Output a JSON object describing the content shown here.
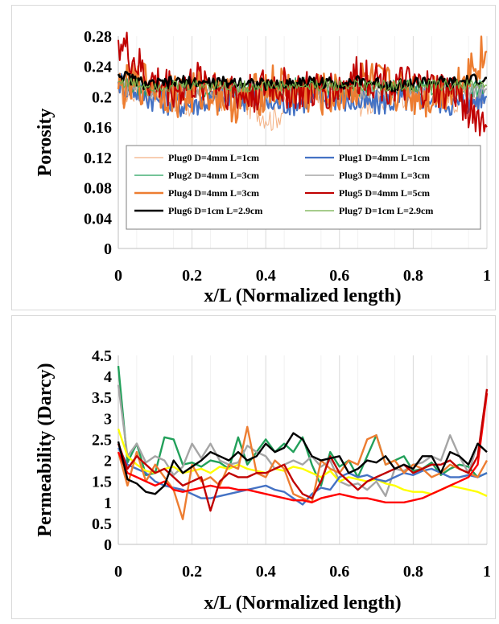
{
  "chart_data": [
    {
      "type": "line",
      "title": "",
      "xlabel": "x/L (Normalized length)",
      "ylabel": "Porosity",
      "xlim": [
        0,
        1
      ],
      "ylim": [
        0,
        0.28
      ],
      "xticks": [
        "0",
        "0.2",
        "0.4",
        "0.6",
        "0.8",
        "1"
      ],
      "yticks": [
        "0",
        "0.04",
        "0.08",
        "0.12",
        "0.16",
        "0.2",
        "0.24",
        "0.28"
      ],
      "grid": "vertical",
      "legend_position": "center-bottom",
      "series": [
        {
          "name": "Plug0 D=4mm L=1cm",
          "color": "#f4b183",
          "width": 1,
          "base": 0.205,
          "amp": 0.018,
          "y": [
            0.205,
            0.21,
            0.185,
            0.2,
            0.195,
            0.17,
            0.205,
            0.21,
            0.19,
            0.2,
            0.208,
            0.195,
            0.2
          ]
        },
        {
          "name": "Plug1 D=4mm  L=1cm",
          "color": "#4472c4",
          "width": 2.2,
          "base": 0.197,
          "amp": 0.018,
          "y": [
            0.22,
            0.2,
            0.19,
            0.195,
            0.2,
            0.19,
            0.195,
            0.2,
            0.19,
            0.195,
            0.2,
            0.19,
            0.2
          ]
        },
        {
          "name": "Plug2 D=4mm  L=3cm",
          "color": "#22a05a",
          "width": 1.2,
          "base": 0.212,
          "amp": 0.012,
          "y": [
            0.22,
            0.21,
            0.215,
            0.21,
            0.212,
            0.21,
            0.215,
            0.21,
            0.212,
            0.21,
            0.215,
            0.21,
            0.21
          ]
        },
        {
          "name": "Plug3 D=4mm  L=3cm",
          "color": "#a5a5a5",
          "width": 1.6,
          "base": 0.21,
          "amp": 0.012,
          "y": [
            0.215,
            0.21,
            0.208,
            0.212,
            0.21,
            0.208,
            0.212,
            0.21,
            0.208,
            0.212,
            0.21,
            0.208,
            0.21
          ]
        },
        {
          "name": "Plug4 D=4mm  L=3cm",
          "color": "#ed7d31",
          "width": 2.4,
          "base": 0.207,
          "amp": 0.03,
          "y": [
            0.21,
            0.22,
            0.2,
            0.21,
            0.19,
            0.215,
            0.205,
            0.2,
            0.22,
            0.21,
            0.2,
            0.215,
            0.26
          ]
        },
        {
          "name": "Plug5 D=4mm  L=5cm",
          "color": "#c00000",
          "width": 2,
          "base": 0.213,
          "amp": 0.028,
          "y": [
            0.275,
            0.22,
            0.21,
            0.225,
            0.2,
            0.215,
            0.205,
            0.21,
            0.23,
            0.215,
            0.21,
            0.205,
            0.16
          ]
        },
        {
          "name": "Plug6 D=1cm L=2.9cm",
          "color": "#000000",
          "width": 2.6,
          "base": 0.218,
          "amp": 0.008,
          "y": [
            0.23,
            0.215,
            0.22,
            0.218,
            0.22,
            0.215,
            0.22,
            0.218,
            0.22,
            0.215,
            0.22,
            0.218,
            0.225
          ]
        },
        {
          "name": "Plug7 D=1cm L=2.9cm",
          "color": "#70ad47",
          "width": 1.2,
          "base": 0.214,
          "amp": 0.008,
          "y": [
            0.22,
            0.215,
            0.214,
            0.216,
            0.213,
            0.215,
            0.214,
            0.216,
            0.214,
            0.215,
            0.214,
            0.216,
            0.215
          ]
        }
      ]
    },
    {
      "type": "line",
      "title": "",
      "xlabel": "x/L (Normalized length)",
      "ylabel": "Permeability  (Darcy)",
      "xlim": [
        0,
        1
      ],
      "ylim": [
        0,
        4.5
      ],
      "xticks": [
        "0",
        "0.2",
        "0.4",
        "0.6",
        "0.8",
        "1"
      ],
      "yticks": [
        "0",
        "0.5",
        "1",
        "1.5",
        "2",
        "2.5",
        "3",
        "3.5",
        "4",
        "4.5"
      ],
      "grid": "vertical",
      "x": [
        0,
        0.025,
        0.05,
        0.075,
        0.1,
        0.125,
        0.15,
        0.175,
        0.2,
        0.225,
        0.25,
        0.275,
        0.3,
        0.325,
        0.35,
        0.375,
        0.4,
        0.425,
        0.45,
        0.475,
        0.5,
        0.525,
        0.55,
        0.575,
        0.6,
        0.625,
        0.65,
        0.675,
        0.7,
        0.725,
        0.75,
        0.775,
        0.8,
        0.825,
        0.85,
        0.875,
        0.9,
        0.925,
        0.95,
        0.975,
        1
      ],
      "series": [
        {
          "color": "#22a05a",
          "y": [
            4.25,
            1.95,
            2.4,
            1.65,
            1.7,
            2.55,
            2.5,
            1.9,
            1.95,
            1.85,
            2.0,
            1.95,
            1.8,
            2.55,
            1.9,
            2.2,
            2.5,
            2.2,
            2.4,
            2.2,
            2.55,
            1.9,
            1.4,
            2.2,
            1.85,
            2.0,
            1.6,
            2.1,
            2.6,
            1.9,
            2.0,
            2.1,
            1.75,
            1.8,
            1.95,
            1.65,
            1.8,
            1.9,
            1.85,
            1.6,
            1.7
          ]
        },
        {
          "color": "#a5a5a5",
          "y": [
            3.8,
            2.1,
            2.4,
            1.95,
            2.1,
            2.0,
            1.65,
            1.85,
            2.4,
            2.05,
            2.4,
            2.0,
            1.9,
            1.95,
            2.35,
            2.2,
            2.1,
            1.8,
            1.9,
            2.0,
            1.9,
            2.1,
            1.85,
            2.0,
            1.5,
            1.4,
            1.45,
            1.3,
            1.5,
            1.15,
            1.8,
            1.75,
            1.9,
            1.95,
            2.1,
            2.0,
            2.6,
            2.1,
            1.7,
            2.4,
            2.2
          ]
        },
        {
          "color": "#ffff00",
          "y": [
            2.75,
            2.1,
            1.9,
            1.75,
            1.7,
            1.8,
            1.85,
            1.7,
            1.75,
            1.8,
            1.7,
            1.85,
            1.8,
            1.9,
            1.8,
            1.75,
            1.7,
            1.8,
            1.75,
            1.85,
            1.8,
            1.7,
            1.6,
            1.75,
            1.5,
            1.6,
            1.55,
            1.5,
            1.55,
            1.45,
            1.4,
            1.3,
            1.25,
            1.25,
            1.2,
            1.3,
            1.4,
            1.35,
            1.3,
            1.25,
            1.15
          ]
        },
        {
          "color": "#4472c4",
          "y": [
            2.3,
            1.9,
            1.8,
            1.7,
            1.5,
            1.4,
            1.35,
            1.3,
            1.2,
            1.1,
            1.1,
            1.15,
            1.2,
            1.25,
            1.3,
            1.35,
            1.4,
            1.3,
            1.25,
            1.1,
            0.95,
            1.2,
            1.35,
            1.3,
            1.6,
            1.7,
            1.6,
            1.65,
            1.55,
            1.5,
            1.6,
            1.7,
            1.65,
            1.75,
            1.8,
            1.7,
            1.6,
            1.6,
            1.65,
            1.6,
            1.7
          ]
        },
        {
          "color": "#ed7d31",
          "y": [
            2.2,
            1.4,
            2.2,
            1.5,
            1.9,
            1.6,
            1.3,
            0.6,
            1.9,
            1.5,
            1.6,
            1.4,
            1.9,
            1.8,
            2.8,
            1.7,
            1.6,
            2.0,
            1.8,
            1.2,
            1.1,
            1.0,
            2.0,
            1.8,
            1.7,
            2.0,
            1.9,
            2.5,
            2.6,
            1.9,
            2.0,
            1.7,
            1.9,
            1.8,
            1.6,
            1.7,
            1.9,
            1.8,
            1.7,
            1.6,
            2.0
          ]
        },
        {
          "color": "#ff0000",
          "y": [
            2.2,
            1.7,
            1.6,
            1.5,
            1.4,
            1.5,
            1.3,
            1.25,
            1.3,
            1.35,
            1.4,
            1.35,
            1.35,
            1.3,
            1.3,
            1.25,
            1.2,
            1.15,
            1.1,
            1.05,
            1.05,
            1.0,
            1.1,
            1.15,
            1.2,
            1.15,
            1.1,
            1.1,
            1.05,
            1.0,
            1.0,
            1.0,
            1.05,
            1.1,
            1.2,
            1.3,
            1.4,
            1.5,
            1.6,
            1.9,
            3.6
          ]
        },
        {
          "color": "#c00000",
          "y": [
            2.4,
            1.8,
            2.1,
            1.9,
            1.7,
            1.8,
            1.6,
            1.4,
            1.5,
            1.6,
            0.8,
            1.5,
            1.7,
            1.6,
            1.6,
            1.7,
            1.7,
            1.8,
            1.9,
            1.5,
            1.2,
            1.1,
            1.5,
            2.1,
            1.7,
            1.5,
            1.3,
            1.5,
            1.6,
            1.7,
            1.8,
            1.9,
            1.7,
            1.8,
            1.9,
            1.9,
            2.0,
            1.8,
            1.7,
            2.1,
            3.7
          ]
        },
        {
          "color": "#000000",
          "y": [
            2.45,
            1.55,
            1.45,
            1.25,
            1.2,
            1.4,
            2.0,
            1.7,
            1.85,
            2.0,
            2.2,
            2.1,
            2.0,
            2.2,
            2.0,
            2.1,
            2.4,
            2.2,
            2.3,
            2.65,
            2.5,
            2.1,
            2.0,
            2.05,
            2.1,
            1.7,
            1.8,
            2.0,
            1.95,
            2.1,
            1.8,
            1.9,
            1.8,
            2.1,
            2.1,
            1.7,
            2.2,
            2.1,
            1.9,
            2.4,
            2.2
          ]
        }
      ]
    }
  ]
}
